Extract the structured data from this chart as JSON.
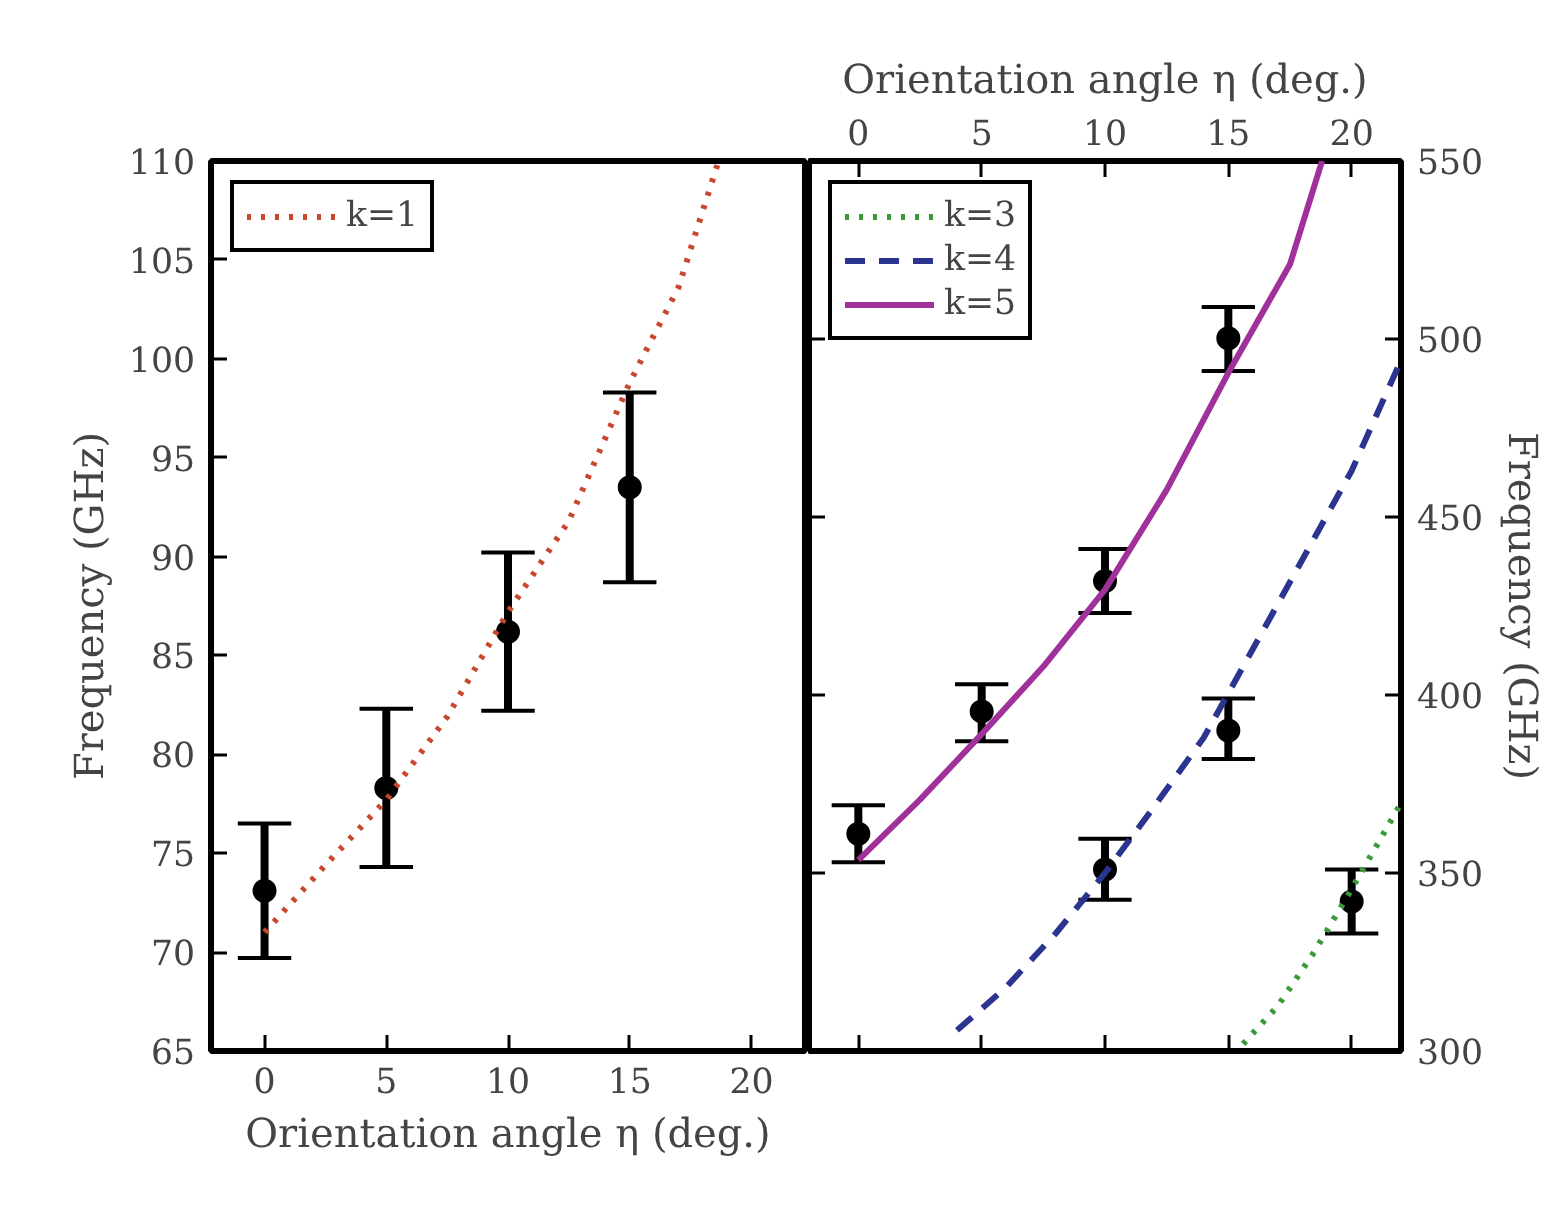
{
  "chart_data": [
    {
      "type": "line",
      "xlabel": "Orientation angle η (deg.)",
      "ylabel": "Frequency (GHz)",
      "xlim": [
        -2.2,
        22.2
      ],
      "xticks": [
        0,
        5,
        10,
        15,
        20
      ],
      "ylim": [
        65,
        110
      ],
      "yticks": [
        65,
        70,
        75,
        80,
        85,
        90,
        95,
        100,
        105,
        110
      ],
      "grid": false,
      "legend": "top left",
      "series": [
        {
          "name": "k=1",
          "color": "#c8472e",
          "line_style": "dotted",
          "x": [
            0,
            2.5,
            5,
            7.5,
            10,
            12.5,
            15,
            17,
            18.6
          ],
          "values": [
            71.0,
            74.4,
            77.7,
            81.9,
            87.2,
            91.8,
            98.8,
            103.6,
            109.8
          ]
        },
        {
          "type": "scatter",
          "color": "#000000",
          "marker": "circle",
          "x": [
            0,
            5,
            10,
            15
          ],
          "values": [
            73.1,
            78.3,
            86.2,
            93.5
          ],
          "errors": [
            [
              69.7,
              76.5
            ],
            [
              74.3,
              82.3
            ],
            [
              82.2,
              90.2
            ],
            [
              88.7,
              98.3
            ]
          ]
        }
      ]
    },
    {
      "type": "line",
      "xlabel": "Orientation angle η (deg.)",
      "ylabel": "Frequency (GHz)",
      "xlim": [
        -2,
        22
      ],
      "xticks": [
        0,
        5,
        10,
        15,
        20
      ],
      "ylim": [
        300,
        550
      ],
      "yticks": [
        300,
        350,
        400,
        450,
        500,
        550
      ],
      "grid": false,
      "legend": "top left",
      "series": [
        {
          "name": "k=3",
          "color": "#3a9a3a",
          "line_style": "dotted",
          "x": [
            15.6,
            17,
            18.5,
            20,
            22
          ],
          "values": [
            302,
            312.6,
            328,
            345.5,
            369.6
          ]
        },
        {
          "name": "k=4",
          "color": "#2b3590",
          "line_style": "dashed",
          "x": [
            4,
            6,
            8,
            10,
            12,
            14,
            16,
            18,
            20,
            22
          ],
          "values": [
            305.8,
            318,
            333,
            350,
            368.7,
            388,
            413,
            438,
            463,
            494
          ]
        },
        {
          "name": "k=5",
          "color": "#a0309a",
          "line_style": "solid",
          "x": [
            0,
            2.5,
            5,
            7.5,
            10,
            12.5,
            15,
            17.5,
            18.8
          ],
          "values": [
            353.6,
            370.6,
            389,
            408,
            429.6,
            457.6,
            490.5,
            521,
            550
          ]
        },
        {
          "type": "scatter",
          "color": "#000000",
          "marker": "circle",
          "x": [
            0,
            5,
            10,
            10,
            15,
            15,
            20
          ],
          "values": [
            361,
            395.4,
            432,
            351,
            500.2,
            390,
            342
          ],
          "errors": [
            [
              353,
              369
            ],
            [
              387,
              403
            ],
            [
              423,
              441
            ],
            [
              342.5,
              359.6
            ],
            [
              491,
              509
            ],
            [
              382,
              399
            ],
            [
              333,
              351
            ]
          ]
        }
      ]
    }
  ]
}
